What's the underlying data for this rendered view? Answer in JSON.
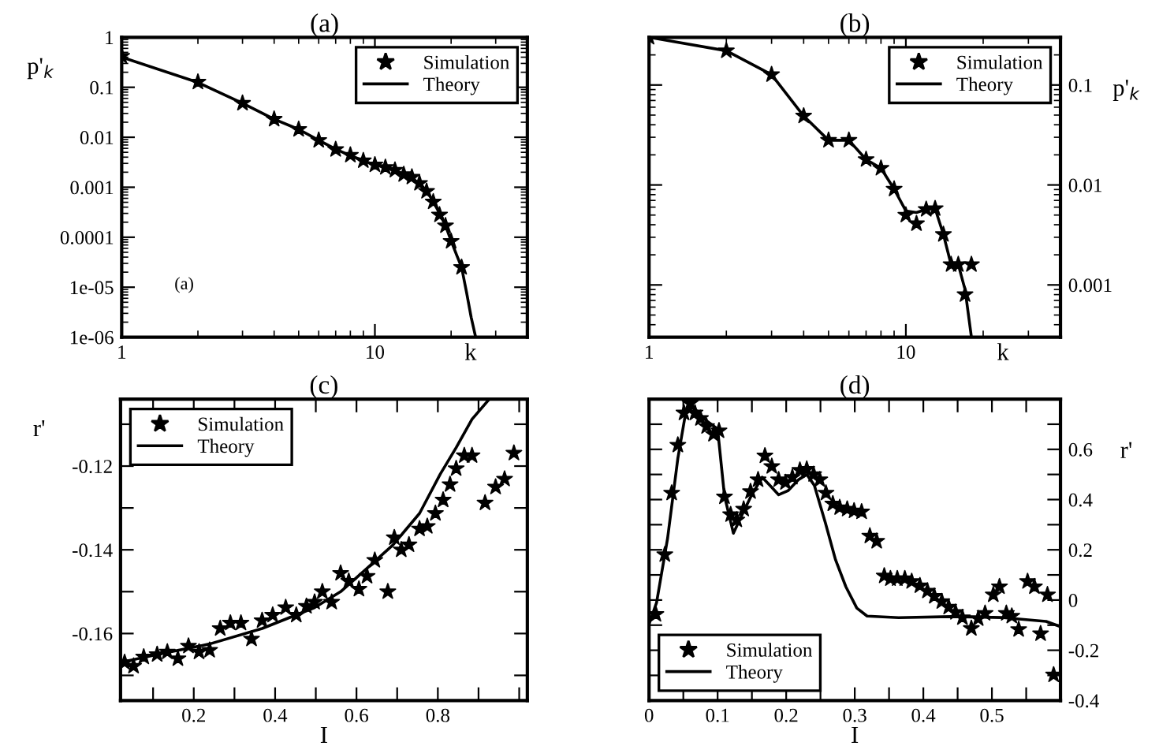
{
  "chart_data": [
    {
      "type": "scatter",
      "title": "(a)",
      "xlabel": "k",
      "ylabel": "p'$_{k}$",
      "log": "xy",
      "xlim": [
        1,
        40
      ],
      "ylim": [
        1e-06,
        1
      ],
      "xticks": [
        1,
        10
      ],
      "yticks": [
        1,
        0.1,
        0.01,
        0.001,
        0.0001,
        1e-05,
        1e-06
      ],
      "legend": "top right",
      "annotations": [
        "(a)"
      ],
      "series": [
        {
          "name": "Simulation",
          "marker": "star",
          "color": "#000000",
          "x": [
            1,
            2,
            3,
            4,
            5,
            6,
            7,
            8,
            9,
            10,
            11,
            12,
            13,
            14,
            15,
            16,
            17,
            18,
            19,
            20,
            22
          ],
          "values": [
            0.42,
            0.127,
            0.048,
            0.023,
            0.0144,
            0.0087,
            0.0057,
            0.0044,
            0.0034,
            0.0028,
            0.0025,
            0.0022,
            0.0018,
            0.0016,
            0.0012,
            0.00083,
            0.00051,
            0.00028,
            0.00017,
            8.3e-05,
            2.5e-05
          ]
        },
        {
          "name": "Theory",
          "type": "line",
          "color": "#000000",
          "x": [
            1,
            2,
            3,
            4,
            5,
            6,
            7,
            8,
            9,
            10,
            11,
            12,
            13,
            14,
            15,
            16,
            17,
            18,
            19,
            20,
            21,
            22,
            23,
            24,
            25
          ],
          "values": [
            0.4,
            0.125,
            0.048,
            0.023,
            0.0144,
            0.0087,
            0.0058,
            0.0043,
            0.0034,
            0.0028,
            0.0025,
            0.0022,
            0.0018,
            0.0015,
            0.0012,
            0.00085,
            0.00052,
            0.0003,
            0.00017,
            8.5e-05,
            4.5e-05,
            2.5e-05,
            8e-06,
            2.5e-06,
            1e-06
          ]
        }
      ]
    },
    {
      "type": "scatter",
      "title": "(b)",
      "xlabel": "k",
      "y2label": "p'$_{k}$",
      "log": "xy",
      "xlim": [
        1,
        40
      ],
      "ylim": [
        0.0003,
        0.3
      ],
      "xticks": [
        1,
        10
      ],
      "yticks": [
        0.1,
        0.01,
        0.001
      ],
      "legend": "top right",
      "series": [
        {
          "name": "Simulation",
          "marker": "star",
          "color": "#000000",
          "x": [
            1,
            2,
            3,
            4,
            5,
            6,
            7,
            8,
            9,
            10,
            11,
            12,
            13,
            14,
            15,
            16,
            17,
            18
          ],
          "values": [
            0.3,
            0.22,
            0.127,
            0.049,
            0.028,
            0.028,
            0.018,
            0.0147,
            0.0091,
            0.005,
            0.0041,
            0.0057,
            0.0058,
            0.0032,
            0.0016,
            0.0016,
            0.0008,
            0.0016
          ]
        },
        {
          "name": "Theory",
          "type": "line",
          "color": "#000000",
          "x": [
            1,
            2,
            3,
            4,
            5,
            6,
            7,
            8,
            9,
            10,
            11,
            12,
            13,
            14,
            15,
            16,
            17,
            18
          ],
          "values": [
            0.3,
            0.22,
            0.127,
            0.049,
            0.028,
            0.028,
            0.018,
            0.0147,
            0.0091,
            0.0055,
            0.0053,
            0.0057,
            0.0058,
            0.0032,
            0.0016,
            0.0016,
            0.0009,
            0.0003
          ]
        }
      ]
    },
    {
      "type": "scatter",
      "title": "(c)",
      "xlabel": "I",
      "ylabel": "r'",
      "xlim": [
        0.02,
        1.02
      ],
      "ylim": [
        -0.176,
        -0.104
      ],
      "xticks": [
        {
          "value": 0.1,
          "label": null
        },
        0.2,
        {
          "value": 0.3,
          "label": null
        },
        0.4,
        {
          "value": 0.5,
          "label": null
        },
        0.6,
        {
          "value": 0.7,
          "label": null
        },
        0.8,
        {
          "value": 0.9,
          "label": null
        },
        {
          "value": 1.0,
          "label": null
        }
      ],
      "yticks": [
        {
          "value": -0.17,
          "label": null
        },
        -0.16,
        {
          "value": -0.15,
          "label": null
        },
        -0.14,
        {
          "value": -0.13,
          "label": null
        },
        -0.12,
        {
          "value": -0.11,
          "label": null
        }
      ],
      "legend": "top left",
      "series": [
        {
          "name": "Simulation",
          "marker": "star",
          "color": "#000000",
          "x": [
            0.03,
            0.052,
            0.077,
            0.11,
            0.135,
            0.161,
            0.187,
            0.213,
            0.239,
            0.265,
            0.29,
            0.316,
            0.342,
            0.368,
            0.394,
            0.426,
            0.452,
            0.477,
            0.497,
            0.516,
            0.539,
            0.561,
            0.581,
            0.606,
            0.626,
            0.645,
            0.677,
            0.693,
            0.71,
            0.729,
            0.755,
            0.774,
            0.794,
            0.813,
            0.83,
            0.845,
            0.865,
            0.884,
            0.916,
            0.942,
            0.964,
            0.987
          ],
          "values": [
            -0.1669,
            -0.1678,
            -0.1656,
            -0.165,
            -0.1644,
            -0.166,
            -0.163,
            -0.1644,
            -0.164,
            -0.1588,
            -0.1575,
            -0.1575,
            -0.1613,
            -0.1569,
            -0.1556,
            -0.1538,
            -0.1556,
            -0.1535,
            -0.1525,
            -0.15,
            -0.1525,
            -0.1456,
            -0.1475,
            -0.1494,
            -0.1463,
            -0.1425,
            -0.15,
            -0.1371,
            -0.14,
            -0.1388,
            -0.135,
            -0.1344,
            -0.1313,
            -0.1281,
            -0.1244,
            -0.1206,
            -0.1175,
            -0.1175,
            -0.1288,
            -0.125,
            -0.1231,
            -0.1169
          ]
        },
        {
          "name": "Theory",
          "type": "line",
          "color": "#000000",
          "x": [
            0.02,
            0.11,
            0.239,
            0.368,
            0.497,
            0.561,
            0.626,
            0.69,
            0.755,
            0.806,
            0.845,
            0.884,
            0.923
          ],
          "values": [
            -0.1669,
            -0.165,
            -0.1625,
            -0.1588,
            -0.1538,
            -0.15,
            -0.1444,
            -0.1388,
            -0.1313,
            -0.1219,
            -0.1156,
            -0.1088,
            -0.1044
          ]
        }
      ]
    },
    {
      "type": "scatter",
      "title": "(d)",
      "xlabel": "I",
      "y2label": "r'",
      "xlim": [
        0,
        0.6
      ],
      "ylim": [
        -0.4,
        0.8
      ],
      "xticks": [
        0,
        {
          "value": 0.05,
          "label": null
        },
        0.1,
        {
          "value": 0.15,
          "label": null
        },
        0.2,
        {
          "value": 0.25,
          "label": null
        },
        0.3,
        {
          "value": 0.35,
          "label": null
        },
        0.4,
        {
          "value": 0.45,
          "label": null
        },
        0.5,
        {
          "value": 0.55,
          "label": null
        }
      ],
      "yticks": [
        -0.4,
        {
          "value": -0.3,
          "label": null
        },
        -0.2,
        {
          "value": -0.1,
          "label": null
        },
        0,
        {
          "value": 0.1,
          "label": null
        },
        0.2,
        {
          "value": 0.3,
          "label": null
        },
        0.4,
        {
          "value": 0.5,
          "label": null
        },
        0.6,
        {
          "value": 0.7,
          "label": null
        }
      ],
      "legend": "bottom left",
      "series": [
        {
          "name": "Simulation",
          "marker": "star",
          "color": "#000000",
          "x": [
            0.01,
            0.023,
            0.033,
            0.042,
            0.051,
            0.06,
            0.067,
            0.075,
            0.084,
            0.094,
            0.102,
            0.11,
            0.119,
            0.128,
            0.138,
            0.148,
            0.159,
            0.169,
            0.179,
            0.189,
            0.199,
            0.209,
            0.22,
            0.23,
            0.24,
            0.249,
            0.258,
            0.268,
            0.278,
            0.289,
            0.299,
            0.31,
            0.322,
            0.332,
            0.343,
            0.352,
            0.362,
            0.373,
            0.383,
            0.395,
            0.406,
            0.416,
            0.427,
            0.437,
            0.447,
            0.457,
            0.47,
            0.48,
            0.49,
            0.502,
            0.511,
            0.521,
            0.529,
            0.539,
            0.552,
            0.562,
            0.571,
            0.581,
            0.59
          ],
          "values": [
            -0.057,
            0.181,
            0.426,
            0.617,
            0.745,
            0.783,
            0.745,
            0.723,
            0.691,
            0.66,
            0.674,
            0.411,
            0.34,
            0.319,
            0.362,
            0.432,
            0.479,
            0.574,
            0.532,
            0.479,
            0.468,
            0.489,
            0.517,
            0.521,
            0.5,
            0.479,
            0.426,
            0.383,
            0.368,
            0.362,
            0.355,
            0.351,
            0.255,
            0.234,
            0.096,
            0.085,
            0.085,
            0.085,
            0.074,
            0.057,
            0.036,
            0.015,
            -0.006,
            -0.028,
            -0.049,
            -0.07,
            -0.113,
            -0.074,
            -0.053,
            0.021,
            0.053,
            -0.053,
            -0.064,
            -0.117,
            0.074,
            0.053,
            -0.134,
            0.021,
            -0.298
          ]
        },
        {
          "name": "Theory",
          "type": "line",
          "color": "#000000",
          "x": [
            0,
            0.011,
            0.027,
            0.042,
            0.054,
            0.065,
            0.084,
            0.1,
            0.11,
            0.123,
            0.134,
            0.149,
            0.165,
            0.176,
            0.189,
            0.203,
            0.218,
            0.23,
            0.241,
            0.257,
            0.272,
            0.287,
            0.303,
            0.318,
            0.364,
            0.441,
            0.517,
            0.579,
            0.6
          ],
          "values": [
            -0.096,
            -0.01,
            0.245,
            0.564,
            0.755,
            0.766,
            0.713,
            0.681,
            0.415,
            0.266,
            0.33,
            0.415,
            0.489,
            0.457,
            0.419,
            0.436,
            0.479,
            0.5,
            0.457,
            0.309,
            0.16,
            0.053,
            -0.032,
            -0.064,
            -0.07,
            -0.066,
            -0.07,
            -0.085,
            -0.106
          ]
        }
      ]
    }
  ]
}
